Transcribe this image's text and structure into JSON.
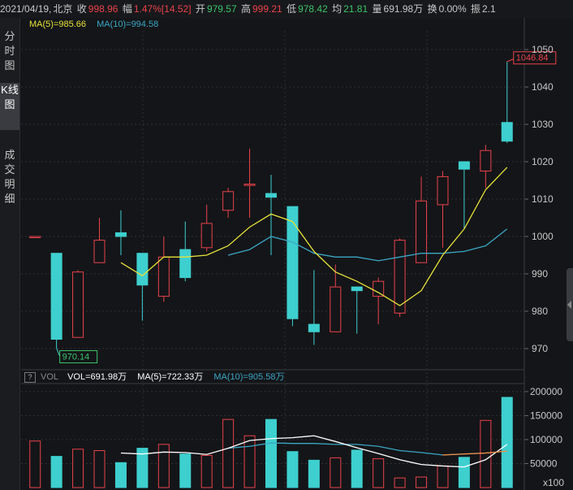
{
  "header": {
    "date": "2021/04/19,",
    "location": "北京",
    "close_label": "收",
    "close_value": "998.96",
    "amp_label": "幅",
    "amp_value": "1.47%[14.52]",
    "open_label": "开",
    "open_value": "979.57",
    "high_label": "高",
    "high_value": "999.21",
    "low_label": "低",
    "low_value": "978.42",
    "avg_label": "均",
    "avg_value": "21.81",
    "vol_label": "量",
    "vol_value": "691.98万",
    "turnover_label": "换",
    "turnover_value": "0.00%",
    "swing_label": "振",
    "swing_value": "2.1"
  },
  "sidebar": {
    "tabs": [
      {
        "label": "分时图",
        "active": false
      },
      {
        "label": "K线图",
        "active": true
      },
      {
        "label": "成交明细",
        "active": false
      }
    ]
  },
  "legend": {
    "ma5": "MA(5)=985.66",
    "ma10": "MA(10)=994.58",
    "ma5_color": "#e6e13a",
    "ma10_color": "#3aa6c4"
  },
  "vol_legend": {
    "button": "?",
    "name": "VOL",
    "vol": "VOL=691.98万",
    "ma5": "MA(5)=722.33万",
    "ma10": "MA(10)=905.58万"
  },
  "colors": {
    "up": "#e8434b",
    "down": "#3ecfcf",
    "ma5": "#e6e13a",
    "ma10": "#3aa6c4",
    "vol_ma5": "#ffffff",
    "vol_ma10_tail": "#ff8a3a"
  },
  "chart_data": [
    {
      "type": "candlestick",
      "y_ticks": [
        "1050",
        "1040",
        "1030",
        "1020",
        "1010",
        "1000",
        "990",
        "980",
        "970"
      ],
      "ylim": [
        965,
        1055
      ],
      "annotations": {
        "max_label": "1046.84",
        "min_label": "970.14"
      },
      "candles": [
        {
          "o": 1000,
          "c": 1000,
          "h": 1000,
          "l": 1000
        },
        {
          "o": 995.5,
          "c": 972.5,
          "h": 995.5,
          "l": 970.1
        },
        {
          "o": 973.0,
          "c": 990.5,
          "h": 991.0,
          "l": 973.0
        },
        {
          "o": 993.0,
          "c": 999.0,
          "h": 1005.0,
          "l": 993.0
        },
        {
          "o": 1001.0,
          "c": 1000.0,
          "h": 1007.0,
          "l": 995.0
        },
        {
          "o": 995.5,
          "c": 987.0,
          "h": 995.5,
          "l": 977.5
        },
        {
          "o": 984.0,
          "c": 994.5,
          "h": 1000.0,
          "l": 982.5
        },
        {
          "o": 996.5,
          "c": 989.0,
          "h": 1004.0,
          "l": 988.0
        },
        {
          "o": 997.0,
          "c": 1003.5,
          "h": 1008.5,
          "l": 996.0
        },
        {
          "o": 1007.0,
          "c": 1012.0,
          "h": 1013.0,
          "l": 1005.0
        },
        {
          "o": 1014.0,
          "c": 1014.0,
          "h": 1023.5,
          "l": 1005.0
        },
        {
          "o": 1011.5,
          "c": 1010.5,
          "h": 1016.5,
          "l": 995.0
        },
        {
          "o": 1008.0,
          "c": 978.0,
          "h": 1008.0,
          "l": 976.0
        },
        {
          "o": 976.5,
          "c": 974.5,
          "h": 991.0,
          "l": 971.0
        },
        {
          "o": 974.5,
          "c": 986.5,
          "h": 992.5,
          "l": 974.5
        },
        {
          "o": 986.5,
          "c": 985.5,
          "h": 986.5,
          "l": 974.0
        },
        {
          "o": 984.0,
          "c": 988.0,
          "h": 989.0,
          "l": 976.5
        },
        {
          "o": 979.5,
          "c": 999.0,
          "h": 999.5,
          "l": 978.5
        },
        {
          "o": 993.0,
          "c": 1009.5,
          "h": 1016.0,
          "l": 993.0
        },
        {
          "o": 1008.5,
          "c": 1016.0,
          "h": 1017.5,
          "l": 997.0
        },
        {
          "o": 1020.0,
          "c": 1018.0,
          "h": 1020.0,
          "l": 1002.0
        },
        {
          "o": 1017.5,
          "c": 1023.0,
          "h": 1024.5,
          "l": 1013.0
        },
        {
          "o": 1030.5,
          "c": 1025.5,
          "h": 1046.8,
          "l": 1025.0
        }
      ],
      "ma5": [
        null,
        null,
        null,
        null,
        993.0,
        989.5,
        994.5,
        994.5,
        995.0,
        997.5,
        1002.5,
        1006.0,
        1004.0,
        996.0,
        990.5,
        988.0,
        985.0,
        981.5,
        985.5,
        995.0,
        1002.0,
        1012.5,
        1018.5
      ],
      "ma10": [
        null,
        null,
        null,
        null,
        null,
        null,
        null,
        null,
        null,
        995.0,
        996.5,
        1000.0,
        998.5,
        995.5,
        994.5,
        994.5,
        993.5,
        994.5,
        995.5,
        995.5,
        996.0,
        997.5,
        1002.0
      ]
    },
    {
      "type": "bar",
      "y_ticks": [
        "200000",
        "150000",
        "100000",
        "50000"
      ],
      "unit_label": "x100",
      "ylim": [
        0,
        210000
      ],
      "values": [
        97000,
        65000,
        80000,
        77000,
        52000,
        82000,
        90000,
        70000,
        67000,
        142000,
        108000,
        142000,
        75000,
        57000,
        62000,
        78000,
        60000,
        20000,
        22000,
        45000,
        63000,
        140000,
        188000
      ],
      "vol_ma5": [
        null,
        null,
        null,
        null,
        72000,
        70000,
        74000,
        73000,
        69000,
        82000,
        98000,
        102000,
        104000,
        108000,
        96000,
        83000,
        71000,
        58000,
        48000,
        45000,
        43000,
        58000,
        90000
      ],
      "vol_ma10": [
        null,
        null,
        null,
        null,
        null,
        null,
        null,
        null,
        null,
        82000,
        86000,
        93000,
        92000,
        92000,
        90000,
        90000,
        86000,
        77000,
        73000,
        68000,
        70000,
        72000,
        76000
      ]
    }
  ]
}
